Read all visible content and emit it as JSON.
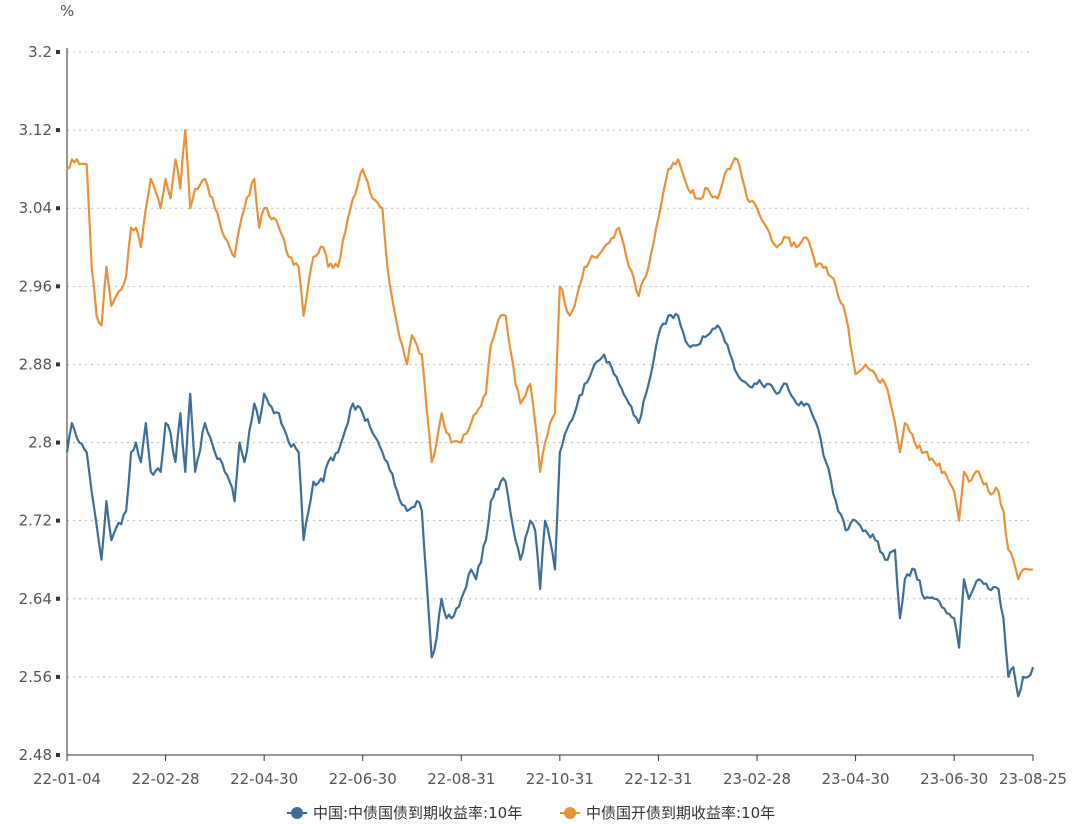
{
  "chart_data": {
    "type": "line",
    "unit_label": "%",
    "ylim": [
      2.48,
      3.2
    ],
    "y_ticks": [
      "2.48",
      "2.56",
      "2.64",
      "2.72",
      "2.8",
      "2.88",
      "2.96",
      "3.04",
      "3.12",
      "3.2"
    ],
    "y_tick_values": [
      2.48,
      2.56,
      2.64,
      2.72,
      2.8,
      2.88,
      2.96,
      3.04,
      3.12,
      3.2
    ],
    "x_ticks": [
      "22-01-04",
      "22-02-28",
      "22-04-30",
      "22-06-30",
      "22-08-31",
      "22-10-31",
      "22-12-31",
      "23-02-28",
      "23-04-30",
      "23-06-30",
      "23-08-25"
    ],
    "x_tick_index": [
      0,
      40,
      80,
      120,
      160,
      200,
      240,
      280,
      320,
      360,
      392
    ],
    "n_points": 393,
    "grid": true,
    "legend_position": "bottom",
    "series": [
      {
        "name": "中国:中债国债到期收益率:10年",
        "color": "#3e6e96",
        "keypoints": [
          [
            0,
            2.79
          ],
          [
            2,
            2.82
          ],
          [
            5,
            2.8
          ],
          [
            8,
            2.79
          ],
          [
            10,
            2.75
          ],
          [
            14,
            2.68
          ],
          [
            16,
            2.74
          ],
          [
            18,
            2.7
          ],
          [
            24,
            2.73
          ],
          [
            26,
            2.79
          ],
          [
            28,
            2.8
          ],
          [
            30,
            2.78
          ],
          [
            32,
            2.82
          ],
          [
            34,
            2.77
          ],
          [
            38,
            2.77
          ],
          [
            40,
            2.82
          ],
          [
            42,
            2.81
          ],
          [
            44,
            2.78
          ],
          [
            46,
            2.83
          ],
          [
            48,
            2.77
          ],
          [
            50,
            2.85
          ],
          [
            52,
            2.77
          ],
          [
            56,
            2.82
          ],
          [
            60,
            2.79
          ],
          [
            64,
            2.77
          ],
          [
            66,
            2.76
          ],
          [
            68,
            2.74
          ],
          [
            70,
            2.8
          ],
          [
            72,
            2.78
          ],
          [
            76,
            2.84
          ],
          [
            78,
            2.82
          ],
          [
            80,
            2.85
          ],
          [
            84,
            2.83
          ],
          [
            86,
            2.83
          ],
          [
            90,
            2.8
          ],
          [
            94,
            2.79
          ],
          [
            96,
            2.7
          ],
          [
            100,
            2.76
          ],
          [
            104,
            2.76
          ],
          [
            106,
            2.78
          ],
          [
            110,
            2.79
          ],
          [
            114,
            2.82
          ],
          [
            116,
            2.84
          ],
          [
            120,
            2.83
          ],
          [
            124,
            2.81
          ],
          [
            128,
            2.79
          ],
          [
            130,
            2.78
          ],
          [
            134,
            2.75
          ],
          [
            138,
            2.73
          ],
          [
            142,
            2.74
          ],
          [
            144,
            2.73
          ],
          [
            148,
            2.58
          ],
          [
            150,
            2.6
          ],
          [
            152,
            2.64
          ],
          [
            154,
            2.62
          ],
          [
            156,
            2.62
          ],
          [
            160,
            2.64
          ],
          [
            164,
            2.67
          ],
          [
            166,
            2.66
          ],
          [
            170,
            2.7
          ],
          [
            172,
            2.74
          ],
          [
            176,
            2.76
          ],
          [
            178,
            2.76
          ],
          [
            182,
            2.7
          ],
          [
            184,
            2.68
          ],
          [
            188,
            2.72
          ],
          [
            190,
            2.71
          ],
          [
            192,
            2.65
          ],
          [
            194,
            2.72
          ],
          [
            196,
            2.7
          ],
          [
            198,
            2.67
          ],
          [
            200,
            2.79
          ],
          [
            204,
            2.82
          ],
          [
            206,
            2.83
          ],
          [
            210,
            2.86
          ],
          [
            214,
            2.88
          ],
          [
            218,
            2.89
          ],
          [
            222,
            2.87
          ],
          [
            224,
            2.86
          ],
          [
            228,
            2.84
          ],
          [
            232,
            2.82
          ],
          [
            236,
            2.86
          ],
          [
            240,
            2.91
          ],
          [
            244,
            2.93
          ],
          [
            248,
            2.93
          ],
          [
            252,
            2.9
          ],
          [
            256,
            2.9
          ],
          [
            260,
            2.91
          ],
          [
            264,
            2.92
          ],
          [
            268,
            2.9
          ],
          [
            272,
            2.87
          ],
          [
            276,
            2.86
          ],
          [
            280,
            2.86
          ],
          [
            284,
            2.86
          ],
          [
            288,
            2.85
          ],
          [
            292,
            2.86
          ],
          [
            296,
            2.84
          ],
          [
            300,
            2.84
          ],
          [
            304,
            2.82
          ],
          [
            308,
            2.78
          ],
          [
            312,
            2.74
          ],
          [
            316,
            2.71
          ],
          [
            320,
            2.72
          ],
          [
            324,
            2.71
          ],
          [
            328,
            2.7
          ],
          [
            332,
            2.68
          ],
          [
            336,
            2.69
          ],
          [
            338,
            2.62
          ],
          [
            340,
            2.66
          ],
          [
            344,
            2.67
          ],
          [
            348,
            2.64
          ],
          [
            352,
            2.64
          ],
          [
            356,
            2.63
          ],
          [
            360,
            2.62
          ],
          [
            362,
            2.59
          ],
          [
            364,
            2.66
          ],
          [
            366,
            2.64
          ],
          [
            370,
            2.66
          ],
          [
            374,
            2.65
          ],
          [
            378,
            2.65
          ],
          [
            380,
            2.62
          ],
          [
            382,
            2.56
          ],
          [
            384,
            2.57
          ],
          [
            386,
            2.54
          ],
          [
            388,
            2.56
          ],
          [
            390,
            2.56
          ],
          [
            392,
            2.57
          ]
        ]
      },
      {
        "name": "中债国开债到期收益率:10年",
        "color": "#e8923a",
        "keypoints": [
          [
            0,
            3.08
          ],
          [
            2,
            3.09
          ],
          [
            5,
            3.085
          ],
          [
            8,
            3.085
          ],
          [
            10,
            2.98
          ],
          [
            12,
            2.93
          ],
          [
            14,
            2.92
          ],
          [
            16,
            2.98
          ],
          [
            18,
            2.94
          ],
          [
            24,
            2.97
          ],
          [
            26,
            3.02
          ],
          [
            28,
            3.02
          ],
          [
            30,
            3.0
          ],
          [
            32,
            3.04
          ],
          [
            34,
            3.07
          ],
          [
            38,
            3.04
          ],
          [
            40,
            3.07
          ],
          [
            42,
            3.05
          ],
          [
            44,
            3.09
          ],
          [
            46,
            3.06
          ],
          [
            48,
            3.12
          ],
          [
            50,
            3.04
          ],
          [
            52,
            3.06
          ],
          [
            56,
            3.07
          ],
          [
            60,
            3.04
          ],
          [
            64,
            3.01
          ],
          [
            66,
            3.0
          ],
          [
            68,
            2.99
          ],
          [
            70,
            3.02
          ],
          [
            72,
            3.04
          ],
          [
            76,
            3.07
          ],
          [
            78,
            3.02
          ],
          [
            80,
            3.04
          ],
          [
            84,
            3.03
          ],
          [
            86,
            3.02
          ],
          [
            90,
            2.99
          ],
          [
            94,
            2.98
          ],
          [
            96,
            2.93
          ],
          [
            100,
            2.99
          ],
          [
            104,
            3.0
          ],
          [
            106,
            2.98
          ],
          [
            110,
            2.98
          ],
          [
            114,
            3.03
          ],
          [
            116,
            3.05
          ],
          [
            120,
            3.08
          ],
          [
            124,
            3.05
          ],
          [
            128,
            3.04
          ],
          [
            130,
            2.98
          ],
          [
            134,
            2.92
          ],
          [
            138,
            2.88
          ],
          [
            140,
            2.91
          ],
          [
            144,
            2.89
          ],
          [
            148,
            2.78
          ],
          [
            150,
            2.8
          ],
          [
            152,
            2.83
          ],
          [
            154,
            2.81
          ],
          [
            156,
            2.8
          ],
          [
            160,
            2.8
          ],
          [
            164,
            2.82
          ],
          [
            166,
            2.83
          ],
          [
            170,
            2.85
          ],
          [
            172,
            2.9
          ],
          [
            176,
            2.93
          ],
          [
            178,
            2.93
          ],
          [
            182,
            2.86
          ],
          [
            184,
            2.84
          ],
          [
            188,
            2.86
          ],
          [
            190,
            2.82
          ],
          [
            192,
            2.77
          ],
          [
            194,
            2.8
          ],
          [
            196,
            2.82
          ],
          [
            198,
            2.83
          ],
          [
            200,
            2.96
          ],
          [
            204,
            2.93
          ],
          [
            206,
            2.94
          ],
          [
            210,
            2.98
          ],
          [
            214,
            2.99
          ],
          [
            218,
            3.0
          ],
          [
            222,
            3.01
          ],
          [
            224,
            3.02
          ],
          [
            228,
            2.98
          ],
          [
            232,
            2.95
          ],
          [
            236,
            2.98
          ],
          [
            240,
            3.03
          ],
          [
            244,
            3.08
          ],
          [
            248,
            3.09
          ],
          [
            252,
            3.06
          ],
          [
            256,
            3.05
          ],
          [
            260,
            3.06
          ],
          [
            264,
            3.05
          ],
          [
            268,
            3.08
          ],
          [
            272,
            3.09
          ],
          [
            276,
            3.05
          ],
          [
            280,
            3.04
          ],
          [
            284,
            3.02
          ],
          [
            288,
            3.0
          ],
          [
            292,
            3.01
          ],
          [
            296,
            3.0
          ],
          [
            300,
            3.01
          ],
          [
            304,
            2.98
          ],
          [
            308,
            2.98
          ],
          [
            312,
            2.96
          ],
          [
            316,
            2.93
          ],
          [
            320,
            2.87
          ],
          [
            324,
            2.88
          ],
          [
            328,
            2.87
          ],
          [
            332,
            2.86
          ],
          [
            336,
            2.82
          ],
          [
            338,
            2.79
          ],
          [
            340,
            2.82
          ],
          [
            344,
            2.8
          ],
          [
            348,
            2.79
          ],
          [
            352,
            2.78
          ],
          [
            356,
            2.77
          ],
          [
            360,
            2.75
          ],
          [
            362,
            2.72
          ],
          [
            364,
            2.77
          ],
          [
            366,
            2.76
          ],
          [
            370,
            2.77
          ],
          [
            374,
            2.75
          ],
          [
            378,
            2.75
          ],
          [
            380,
            2.73
          ],
          [
            382,
            2.69
          ],
          [
            384,
            2.68
          ],
          [
            386,
            2.66
          ],
          [
            388,
            2.67
          ],
          [
            390,
            2.67
          ],
          [
            392,
            2.67
          ]
        ]
      }
    ]
  }
}
